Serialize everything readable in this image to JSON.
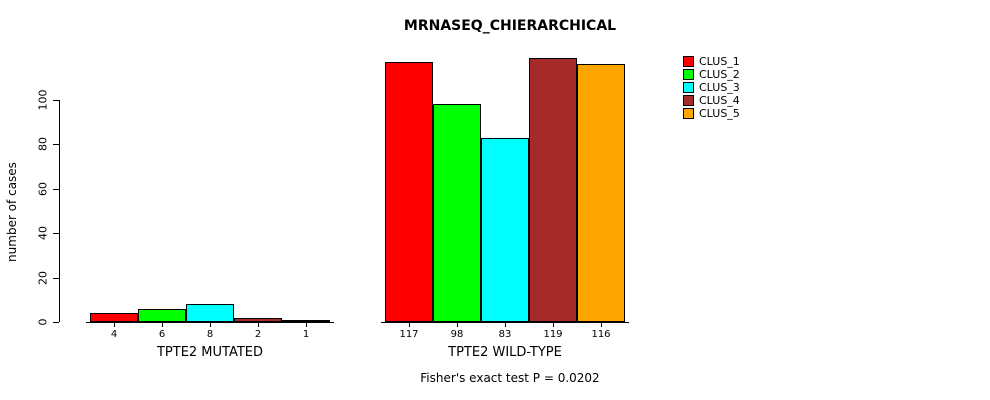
{
  "chart_data": {
    "type": "bar",
    "title": "MRNASEQ_CHIERARCHICAL",
    "ylabel": "number of cases",
    "xlabel": "",
    "categories": [
      "TPTE2 MUTATED",
      "TPTE2 WILD-TYPE"
    ],
    "series": [
      {
        "name": "CLUS_1",
        "color": "#FF0000",
        "values": [
          4,
          117
        ]
      },
      {
        "name": "CLUS_2",
        "color": "#00FF00",
        "values": [
          6,
          98
        ]
      },
      {
        "name": "CLUS_3",
        "color": "#00FFFF",
        "values": [
          8,
          83
        ]
      },
      {
        "name": "CLUS_4",
        "color": "#A52A2A",
        "values": [
          2,
          119
        ]
      },
      {
        "name": "CLUS_5",
        "color": "#FFA500",
        "values": [
          1,
          116
        ]
      }
    ],
    "bar_value_labels": [
      [
        "4",
        "6",
        "8",
        "2",
        "1"
      ],
      [
        "117",
        "98",
        "83",
        "119",
        "116"
      ]
    ],
    "yticks": [
      0,
      20,
      40,
      60,
      80,
      100
    ],
    "ylim": [
      0,
      125
    ],
    "grid": false,
    "legend_position": "top-right",
    "annotation": "Fisher's exact test P = 0.0202"
  }
}
